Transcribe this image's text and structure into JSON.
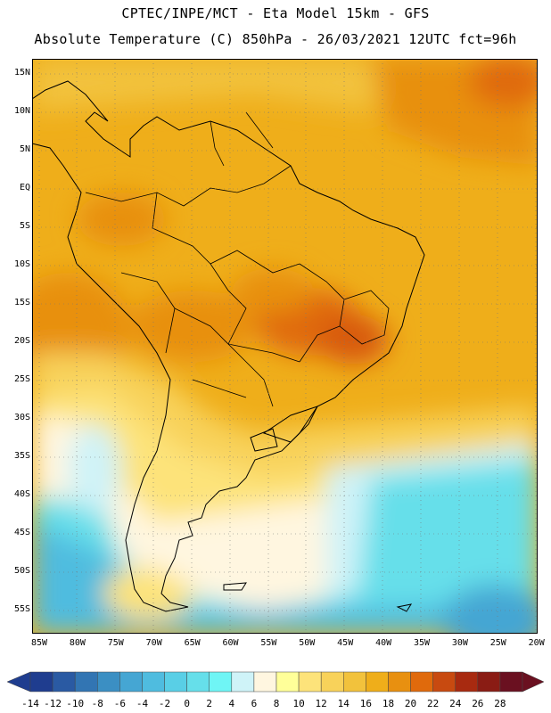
{
  "header": {
    "line1": "CPTEC/INPE/MCT -  Eta Model 15km - GFS",
    "line2": "Absolute Temperature (C) 850hPa - 26/03/2021 12UTC fct=96h"
  },
  "map": {
    "lat_ticks": [
      "15N",
      "10N",
      "5N",
      "EQ",
      "5S",
      "10S",
      "15S",
      "20S",
      "25S",
      "30S",
      "35S",
      "40S",
      "45S",
      "50S",
      "55S"
    ],
    "lon_ticks": [
      "85W",
      "80W",
      "75W",
      "70W",
      "65W",
      "60W",
      "55W",
      "50W",
      "45W",
      "40W",
      "35W",
      "30W",
      "25W",
      "20W"
    ],
    "extent": {
      "lon_min": -86,
      "lon_max": -19,
      "lat_max": 17,
      "lat_min": -58
    }
  },
  "colorbar": {
    "labels": [
      "-14",
      "-12",
      "-10",
      "-8",
      "-6",
      "-4",
      "-2",
      "0",
      "2",
      "4",
      "6",
      "8",
      "10",
      "12",
      "14",
      "16",
      "18",
      "20",
      "22",
      "24",
      "26",
      "28"
    ],
    "colors": [
      "#1f3d8f",
      "#2a5aa3",
      "#3275b3",
      "#3b8fc3",
      "#45a6d3",
      "#4fbcdf",
      "#59cfe6",
      "#66dfea",
      "#6ff5f5",
      "#cff3f8",
      "#fff6e0",
      "#ffff99",
      "#fde37a",
      "#f8d25a",
      "#f2c23c",
      "#efae1a",
      "#e89010",
      "#e06a0c",
      "#c84a10",
      "#a82a10",
      "#8a1c14",
      "#6a1020"
    ]
  }
}
